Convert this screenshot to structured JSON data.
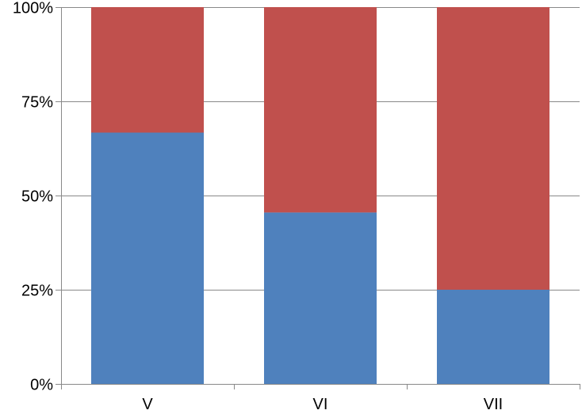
{
  "chart_data": {
    "type": "bar",
    "stacked": true,
    "percent_stacked": true,
    "categories": [
      "V",
      "VI",
      "VII"
    ],
    "series": [
      {
        "values": [
          66.7,
          45.5,
          25.0
        ],
        "color": "#4f81bd"
      },
      {
        "values": [
          33.3,
          54.5,
          75.0
        ],
        "color": "#c0504d"
      }
    ],
    "ylim": [
      0,
      100
    ],
    "y_ticks": [
      0,
      25,
      50,
      75,
      100
    ],
    "y_tick_labels": [
      "0%",
      "25%",
      "50%",
      "75%",
      "100%"
    ],
    "grid": true,
    "legend": "none",
    "title": "",
    "xlabel": "",
    "ylabel": ""
  }
}
